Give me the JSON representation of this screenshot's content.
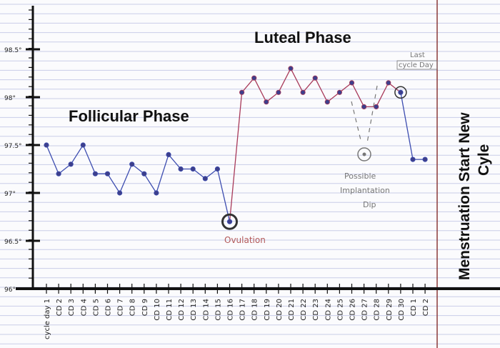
{
  "chart_data": {
    "type": "line",
    "title": "",
    "xlabel": "",
    "ylabel": "",
    "ylim": [
      96.0,
      98.6
    ],
    "y_ticks": [
      "96°",
      "96.5°",
      "97°",
      "97.5°",
      "98°",
      "98.5°"
    ],
    "y_tick_values": [
      96.0,
      96.5,
      97.0,
      97.5,
      98.0,
      98.5
    ],
    "grid": "horizontal ruled lines",
    "categories": [
      "cycle day 1",
      "CD 2",
      "CD 3",
      "CD 4",
      "CD 5",
      "CD 6",
      "CD 7",
      "CD 8",
      "CD 9",
      "CD 10",
      "CD 11",
      "CD 12",
      "CD 13",
      "CD 14",
      "CD 15",
      "CD 16",
      "CD 17",
      "CD 18",
      "CD 19",
      "CD 20",
      "CD 21",
      "CD 22",
      "CD 23",
      "CD 24",
      "CD 25",
      "CD 26",
      "CD 27",
      "CD 28",
      "CD 29",
      "CD 30",
      "CD 1",
      "CD 2"
    ],
    "values": [
      97.5,
      97.2,
      97.3,
      97.5,
      97.2,
      97.2,
      97.0,
      97.3,
      97.2,
      97.0,
      97.4,
      97.25,
      97.25,
      97.15,
      97.25,
      96.7,
      98.05,
      98.2,
      97.95,
      98.05,
      98.3,
      98.05,
      98.2,
      97.95,
      98.05,
      98.15,
      97.9,
      97.9,
      98.15,
      98.05,
      97.35,
      97.35
    ],
    "phase_split_index": 15,
    "color_follicular": "#3d4db0",
    "color_luteal": "#a83a5a"
  },
  "annotations": {
    "follicular": "Follicular Phase",
    "luteal": "Luteal Phase",
    "ovulation": "Ovulation",
    "implantation_line1": "Possible",
    "implantation_line2": "Implantation",
    "implantation_line3": "Dip",
    "last_line1": "Last",
    "last_line2": "cycle Day",
    "menstruation_line1": "Menstruation Start New",
    "menstruation_line2": "Cyle"
  },
  "colors": {
    "ruled_line": "#c9cde8",
    "axis": "#111111",
    "annotation_red": "#b35a5a",
    "annotation_gray": "#777777",
    "divider": "#8b3a3a"
  }
}
